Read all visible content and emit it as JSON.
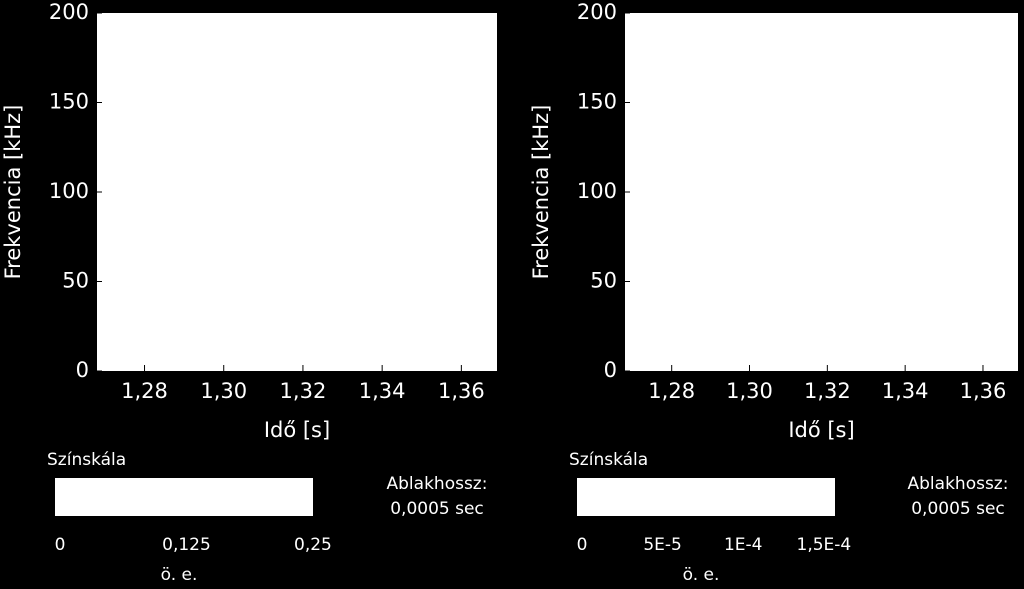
{
  "chart_data": [
    {
      "type": "spectrogram",
      "ylabel": "Frekvencia [kHz]",
      "xlabel": "Idő [s]",
      "xlim": [
        1.268,
        1.369
      ],
      "xticks": [
        {
          "value": 1.28,
          "label": "1,28"
        },
        {
          "value": 1.3,
          "label": "1,30"
        },
        {
          "value": 1.32,
          "label": "1,32"
        },
        {
          "value": 1.34,
          "label": "1,34"
        },
        {
          "value": 1.36,
          "label": "1,36"
        }
      ],
      "ylim": [
        0,
        200
      ],
      "yticks": [
        0,
        50,
        100,
        150,
        200
      ],
      "colorbar": {
        "label": "Színskála",
        "lim": [
          0,
          0.255
        ],
        "ticks": [
          0,
          {
            "value": 0.125,
            "label": "0,125"
          },
          {
            "value": 0.25,
            "label": "0,25"
          }
        ],
        "unit": "ö. e."
      },
      "annotations": [
        "Ablakhossz:",
        "0,0005 sec"
      ]
    },
    {
      "type": "spectrogram",
      "ylabel": "Frekvencia [kHz]",
      "xlabel": "Idő [s]",
      "xlim": [
        1.268,
        1.369
      ],
      "xticks": [
        {
          "value": 1.28,
          "label": "1,28"
        },
        {
          "value": 1.3,
          "label": "1,30"
        },
        {
          "value": 1.32,
          "label": "1,32"
        },
        {
          "value": 1.34,
          "label": "1,34"
        },
        {
          "value": 1.36,
          "label": "1,36"
        }
      ],
      "ylim": [
        0,
        200
      ],
      "yticks": [
        0,
        50,
        100,
        150,
        200
      ],
      "colorbar": {
        "label": "Színskála",
        "lim": [
          0,
          0.00016
        ],
        "ticks": [
          0,
          {
            "value": 5e-05,
            "label": "5E-5"
          },
          {
            "value": 0.0001,
            "label": "1E-4"
          },
          {
            "value": 0.00015,
            "label": "1,5E-4"
          }
        ],
        "unit": "ö. e."
      },
      "annotations": [
        "Ablakhossz:",
        "0,0005 sec"
      ]
    }
  ]
}
